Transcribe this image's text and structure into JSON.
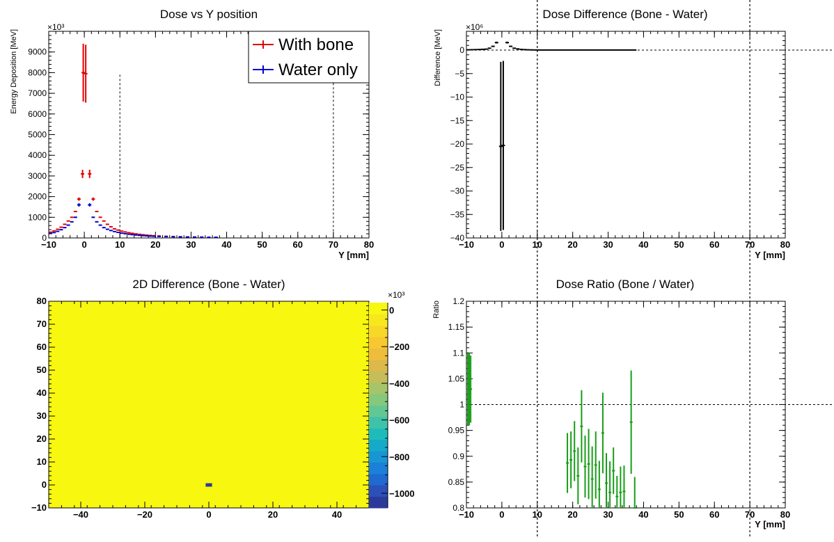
{
  "colors": {
    "with_bone": "#e00000",
    "water_only": "#0000d0",
    "difference": "#000000",
    "ratio": "#169e16",
    "heatmap_bg": "#f7f710",
    "heatmap_hot": "#2b47a8"
  },
  "chart_data": [
    {
      "type": "scatter",
      "title": "Dose vs Y position",
      "xlabel": "Y [mm]",
      "ylabel": "Energy Deposition [MeV]",
      "y_exponent_label": "×10³",
      "xlim": [
        -10,
        80
      ],
      "ylim": [
        0,
        10000
      ],
      "x_ticks": [
        "−10",
        "0",
        "10",
        "20",
        "30",
        "40",
        "50",
        "60",
        "70",
        "80"
      ],
      "y_ticks": [
        "0",
        "1000",
        "2000",
        "3000",
        "4000",
        "5000",
        "6000",
        "7000",
        "8000",
        "9000"
      ],
      "vlines": [
        10,
        70
      ],
      "legend": {
        "position": "top-right",
        "entries": [
          "With bone",
          "Water only"
        ]
      },
      "series": [
        {
          "name": "With bone",
          "color": "#e00000",
          "points": [
            {
              "x": -9.5,
              "y": 280,
              "err": 0
            },
            {
              "x": -8.5,
              "y": 340,
              "err": 0
            },
            {
              "x": -7.5,
              "y": 420,
              "err": 0
            },
            {
              "x": -6.5,
              "y": 520,
              "err": 0
            },
            {
              "x": -5.5,
              "y": 660,
              "err": 0
            },
            {
              "x": -4.5,
              "y": 820,
              "err": 0
            },
            {
              "x": -3.5,
              "y": 1000,
              "err": 0
            },
            {
              "x": -2.5,
              "y": 1280,
              "err": 30
            },
            {
              "x": -1.5,
              "y": 1880,
              "err": 80
            },
            {
              "x": -0.5,
              "y": 3100,
              "err": 200
            },
            {
              "x": -0.3,
              "y": 8000,
              "err": 1400
            },
            {
              "x": 0.4,
              "y": 7950,
              "err": 1400
            },
            {
              "x": 1.5,
              "y": 3100,
              "err": 200
            },
            {
              "x": 2.5,
              "y": 1880,
              "err": 80
            },
            {
              "x": 3.5,
              "y": 1280,
              "err": 30
            },
            {
              "x": 4.5,
              "y": 1000,
              "err": 0
            },
            {
              "x": 5.5,
              "y": 820,
              "err": 0
            },
            {
              "x": 6.5,
              "y": 660,
              "err": 0
            },
            {
              "x": 7.5,
              "y": 540,
              "err": 0
            },
            {
              "x": 8.5,
              "y": 440,
              "err": 0
            },
            {
              "x": 9.5,
              "y": 380,
              "err": 0
            },
            {
              "x": 10.5,
              "y": 330,
              "err": 0
            },
            {
              "x": 11.5,
              "y": 290,
              "err": 0
            },
            {
              "x": 12.5,
              "y": 255,
              "err": 0
            },
            {
              "x": 13.5,
              "y": 225,
              "err": 0
            },
            {
              "x": 14.5,
              "y": 198,
              "err": 0
            },
            {
              "x": 15.5,
              "y": 175,
              "err": 0
            },
            {
              "x": 16.5,
              "y": 155,
              "err": 0
            },
            {
              "x": 17.5,
              "y": 138,
              "err": 0
            },
            {
              "x": 18.5,
              "y": 122,
              "err": 0
            },
            {
              "x": 19.5,
              "y": 108,
              "err": 0
            },
            {
              "x": 21,
              "y": 95,
              "err": 0
            },
            {
              "x": 23,
              "y": 80,
              "err": 0
            },
            {
              "x": 25,
              "y": 68,
              "err": 0
            },
            {
              "x": 27,
              "y": 58,
              "err": 0
            },
            {
              "x": 29,
              "y": 50,
              "err": 0
            },
            {
              "x": 31,
              "y": 44,
              "err": 0
            },
            {
              "x": 33,
              "y": 39,
              "err": 0
            },
            {
              "x": 35,
              "y": 35,
              "err": 0
            },
            {
              "x": 37,
              "y": 32,
              "err": 0
            }
          ]
        },
        {
          "name": "Water only",
          "color": "#0000d0",
          "points": [
            {
              "x": -9.5,
              "y": 220,
              "err": 0
            },
            {
              "x": -8.5,
              "y": 260,
              "err": 0
            },
            {
              "x": -7.5,
              "y": 320,
              "err": 0
            },
            {
              "x": -6.5,
              "y": 400,
              "err": 0
            },
            {
              "x": -5.5,
              "y": 500,
              "err": 0
            },
            {
              "x": -4.5,
              "y": 620,
              "err": 0
            },
            {
              "x": -3.5,
              "y": 780,
              "err": 0
            },
            {
              "x": -2.5,
              "y": 1000,
              "err": 30
            },
            {
              "x": -1.5,
              "y": 1600,
              "err": 80
            },
            {
              "x": 1.5,
              "y": 1600,
              "err": 80
            },
            {
              "x": 2.5,
              "y": 1000,
              "err": 30
            },
            {
              "x": 3.5,
              "y": 780,
              "err": 0
            },
            {
              "x": 4.5,
              "y": 620,
              "err": 0
            },
            {
              "x": 5.5,
              "y": 500,
              "err": 0
            },
            {
              "x": 6.5,
              "y": 420,
              "err": 0
            },
            {
              "x": 7.5,
              "y": 360,
              "err": 0
            },
            {
              "x": 8.5,
              "y": 310,
              "err": 0
            },
            {
              "x": 9.5,
              "y": 270,
              "err": 0
            },
            {
              "x": 10.5,
              "y": 235,
              "err": 0
            },
            {
              "x": 11.5,
              "y": 205,
              "err": 0
            },
            {
              "x": 12.5,
              "y": 180,
              "err": 0
            },
            {
              "x": 13.5,
              "y": 160,
              "err": 0
            },
            {
              "x": 14.5,
              "y": 142,
              "err": 0
            },
            {
              "x": 15.5,
              "y": 126,
              "err": 0
            },
            {
              "x": 16.5,
              "y": 112,
              "err": 0
            },
            {
              "x": 17.5,
              "y": 100,
              "err": 0
            },
            {
              "x": 18.5,
              "y": 90,
              "err": 0
            },
            {
              "x": 19.5,
              "y": 81,
              "err": 0
            },
            {
              "x": 21,
              "y": 72,
              "err": 0
            },
            {
              "x": 23,
              "y": 63,
              "err": 0
            },
            {
              "x": 25,
              "y": 56,
              "err": 0
            },
            {
              "x": 27,
              "y": 50,
              "err": 0
            },
            {
              "x": 29,
              "y": 45,
              "err": 0
            },
            {
              "x": 31,
              "y": 41,
              "err": 0
            },
            {
              "x": 33,
              "y": 37,
              "err": 0
            },
            {
              "x": 35,
              "y": 34,
              "err": 0
            },
            {
              "x": 37,
              "y": 31,
              "err": 0
            }
          ]
        }
      ]
    },
    {
      "type": "scatter",
      "title": "Dose Difference (Bone - Water)",
      "xlabel": "Y [mm]",
      "ylabel": "Difference [MeV]",
      "y_exponent_label": "×10⁶",
      "xlim": [
        -10,
        80
      ],
      "ylim": [
        -40,
        4
      ],
      "x_ticks": [
        "−10",
        "0",
        "10",
        "20",
        "30",
        "40",
        "50",
        "60",
        "70",
        "80"
      ],
      "y_ticks": [
        "−40",
        "−35",
        "−30",
        "−25",
        "−20",
        "−15",
        "−10",
        "−5",
        "0"
      ],
      "vlines": [
        10,
        70
      ],
      "hline": 0,
      "series": [
        {
          "name": "",
          "color": "#000000",
          "points": [
            {
              "x": -9.5,
              "y": 0.06,
              "err": 0
            },
            {
              "x": -8.5,
              "y": 0.08,
              "err": 0
            },
            {
              "x": -7.5,
              "y": 0.1,
              "err": 0
            },
            {
              "x": -6.5,
              "y": 0.12,
              "err": 0
            },
            {
              "x": -5.5,
              "y": 0.16,
              "err": 0
            },
            {
              "x": -4.5,
              "y": 0.2,
              "err": 0
            },
            {
              "x": -3.5,
              "y": 0.4,
              "err": 0
            },
            {
              "x": -2.5,
              "y": 0.8,
              "err": 0
            },
            {
              "x": -1.5,
              "y": 1.6,
              "err": 0.2
            },
            {
              "x": -0.3,
              "y": -20.5,
              "err": 18
            },
            {
              "x": 0.4,
              "y": -20.3,
              "err": 18
            },
            {
              "x": 1.5,
              "y": 1.6,
              "err": 0.2
            },
            {
              "x": 2.5,
              "y": 0.8,
              "err": 0
            },
            {
              "x": 3.5,
              "y": 0.4,
              "err": 0
            },
            {
              "x": 4.5,
              "y": 0.25,
              "err": 0
            },
            {
              "x": 5.5,
              "y": 0.15,
              "err": 0
            },
            {
              "x": 6.5,
              "y": 0.1,
              "err": 0
            },
            {
              "x": 7.5,
              "y": 0.06,
              "err": 0
            },
            {
              "x": 8.5,
              "y": 0.04,
              "err": 0
            },
            {
              "x": 9.5,
              "y": 0.03,
              "err": 0
            }
          ],
          "flat_segment": {
            "x_from": 10,
            "x_to": 38,
            "y": 0.02
          }
        }
      ]
    },
    {
      "type": "heatmap",
      "title": "2D Difference (Bone - Water)",
      "xlim": [
        -50,
        50
      ],
      "ylim": [
        -10,
        80
      ],
      "x_ticks": [
        "−40",
        "−20",
        "0",
        "20",
        "40"
      ],
      "y_ticks": [
        "−10",
        "0",
        "10",
        "20",
        "30",
        "40",
        "50",
        "60",
        "70",
        "80"
      ],
      "colorbar": {
        "exponent_label": "×10³",
        "ticks": [
          "0",
          "−200",
          "−400",
          "−600",
          "−800",
          "−1000"
        ],
        "range": [
          -1080,
          40
        ],
        "colors": [
          "#2b3a9a",
          "#2c4fb8",
          "#1f6ad0",
          "#1b80d8",
          "#1896d4",
          "#16aac8",
          "#1fbbbb",
          "#3fc3a8",
          "#62c893",
          "#85c87e",
          "#a6c46a",
          "#c4bd59",
          "#dcb94a",
          "#eebd3c",
          "#f7c830",
          "#f7d828",
          "#f7e81e",
          "#f7f710"
        ]
      },
      "hot_cell": {
        "x": 0,
        "y": 0,
        "value": -1050
      },
      "background_value": 0
    },
    {
      "type": "scatter",
      "title": "Dose Ratio (Bone / Water)",
      "xlabel": "Y [mm]",
      "ylabel": "Ratio",
      "xlim": [
        -10,
        80
      ],
      "ylim": [
        0.8,
        1.2
      ],
      "x_ticks": [
        "−10",
        "0",
        "10",
        "20",
        "30",
        "40",
        "50",
        "60",
        "70",
        "80"
      ],
      "y_ticks": [
        "0.8",
        "0.85",
        "0.9",
        "0.95",
        "1",
        "1.05",
        "1.1",
        "1.15",
        "1.2"
      ],
      "vlines": [
        10,
        70
      ],
      "hline": 1,
      "series": [
        {
          "name": "",
          "color": "#169e16",
          "points": [
            {
              "x": -9.6,
              "y": 1.03,
              "err": 0.07
            },
            {
              "x": -9.2,
              "y": 1.03,
              "err": 0.07
            },
            {
              "x": -8.8,
              "y": 1.03,
              "err": 0.065
            },
            {
              "x": 18.5,
              "y": 0.887,
              "err": 0.058
            },
            {
              "x": 19.5,
              "y": 0.893,
              "err": 0.055
            },
            {
              "x": 20.5,
              "y": 0.91,
              "err": 0.058
            },
            {
              "x": 21.5,
              "y": 0.862,
              "err": 0.055
            },
            {
              "x": 22.5,
              "y": 0.958,
              "err": 0.07
            },
            {
              "x": 23.5,
              "y": 0.88,
              "err": 0.06
            },
            {
              "x": 24.5,
              "y": 0.885,
              "err": 0.068
            },
            {
              "x": 25.5,
              "y": 0.856,
              "err": 0.063
            },
            {
              "x": 26.5,
              "y": 0.883,
              "err": 0.065
            },
            {
              "x": 27.5,
              "y": 0.836,
              "err": 0.055
            },
            {
              "x": 28.5,
              "y": 0.945,
              "err": 0.078
            },
            {
              "x": 29.5,
              "y": 0.848,
              "err": 0.058
            },
            {
              "x": 30.5,
              "y": 0.83,
              "err": 0.06
            },
            {
              "x": 31.5,
              "y": 0.872,
              "err": 0.045
            },
            {
              "x": 32.5,
              "y": 0.822,
              "err": 0.04
            },
            {
              "x": 33.5,
              "y": 0.83,
              "err": 0.05
            },
            {
              "x": 34.5,
              "y": 0.832,
              "err": 0.05
            },
            {
              "x": 36.5,
              "y": 0.966,
              "err": 0.1
            },
            {
              "x": 37.5,
              "y": 0.8,
              "err": 0.06
            }
          ]
        }
      ]
    }
  ]
}
